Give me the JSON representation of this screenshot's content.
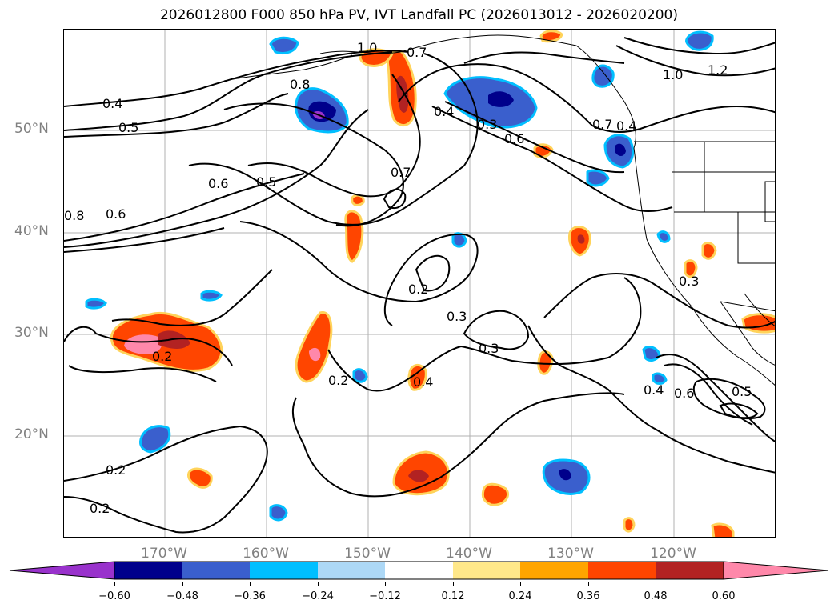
{
  "title": "2026012800 F000 850 hPa PV, IVT Landfall PC (2026013012 - 2026020200)",
  "latitude_labels": [
    "50°N",
    "40°N",
    "30°N",
    "20°N"
  ],
  "longitude_labels": [
    "170°W",
    "160°W",
    "150°W",
    "140°W",
    "130°W",
    "120°W"
  ],
  "contour_labels": [
    "1.0",
    "0.7",
    "0.8",
    "0.4",
    "0.5",
    "0.4",
    "0.3",
    "0.6",
    "0.7",
    "1.0",
    "1.2",
    "0.6",
    "0.5",
    "0.7",
    "0.8",
    "0.6",
    "0.2",
    "0.3",
    "0.3",
    "0.2",
    "0.4",
    "0.2",
    "0.4",
    "0.6",
    "0.5",
    "0.2",
    "0.2",
    "0.3",
    "0.4"
  ],
  "colorbar": {
    "ticks": [
      "−0.60",
      "−0.48",
      "−0.36",
      "−0.24",
      "−0.12",
      "0.12",
      "0.24",
      "0.36",
      "0.48",
      "0.60"
    ],
    "colors": [
      "#9932cc",
      "#00008b",
      "#3a5fcd",
      "#00bfff",
      "#add8f6",
      "#ffffff",
      "#ffe88a",
      "#ffa500",
      "#ff4500",
      "#b22222",
      "#ff88aa"
    ]
  }
}
